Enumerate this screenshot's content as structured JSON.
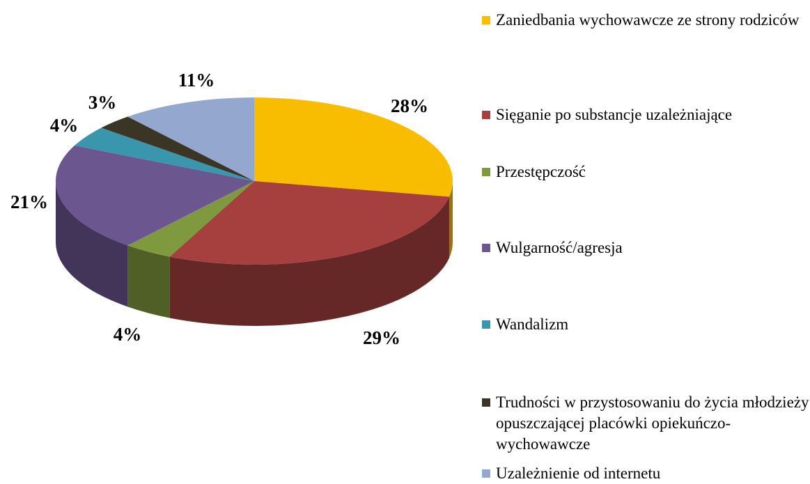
{
  "chart_data": {
    "type": "pie",
    "categories": [
      "Zaniedbania wychowawcze ze strony rodziców",
      "Sięganie po substancje uzależniające",
      "Przestępczość",
      "Wulgarność/agresja",
      "Wandalizm",
      "Trudności w przystosowaniu do życia młodzieży opuszczającej placówki opiekuńczo-wychowawcze",
      "Uzależnienie od internetu"
    ],
    "values": [
      28,
      29,
      4,
      21,
      4,
      3,
      11
    ],
    "value_labels": [
      "28%",
      "29%",
      "4%",
      "21%",
      "4%",
      "3%",
      "11%"
    ],
    "colors": [
      "#f9bd00",
      "#a5403e",
      "#7f9a3e",
      "#6c5690",
      "#3a96ad",
      "#3b3526",
      "#94a7cf"
    ],
    "legend": "right"
  }
}
